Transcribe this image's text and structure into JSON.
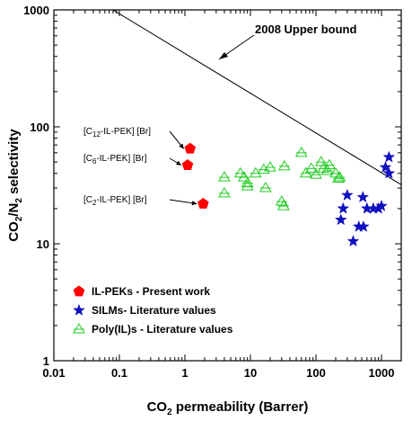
{
  "chart_data": {
    "type": "scatter",
    "xscale": "log",
    "yscale": "log",
    "xlim": [
      0.01,
      2000
    ],
    "ylim": [
      1,
      1000
    ],
    "xticks": [
      {
        "value": 0.01,
        "label": "0.01"
      },
      {
        "value": 0.1,
        "label": "0.1"
      },
      {
        "value": 1,
        "label": "1"
      },
      {
        "value": 10,
        "label": "10"
      },
      {
        "value": 100,
        "label": "100"
      },
      {
        "value": 1000,
        "label": "1000"
      }
    ],
    "yticks": [
      {
        "value": 1,
        "label": "1"
      },
      {
        "value": 10,
        "label": "10"
      },
      {
        "value": 100,
        "label": "100"
      },
      {
        "value": 1000,
        "label": "1000"
      }
    ],
    "xlabel": {
      "pre": "CO",
      "sub": "2",
      "post": " permeability (Barrer)"
    },
    "ylabel": {
      "p1": "CO",
      "s1": "2",
      "p2": "/N",
      "s2": "2",
      "p3": " selectivity"
    },
    "grid": false,
    "legend_position": "bottom-left",
    "upper_bound": {
      "label": "2008 Upper bound",
      "points": [
        [
          0.08,
          1000
        ],
        [
          2000,
          32
        ]
      ]
    },
    "series": [
      {
        "name": "IL-PEKs - Present work",
        "marker": "pentagon",
        "color": "#ff0000",
        "points": [
          [
            1.2,
            65
          ],
          [
            1.1,
            47
          ],
          [
            1.9,
            22
          ]
        ]
      },
      {
        "name": "SILMs- Literature values",
        "marker": "star",
        "color": "#1010c0",
        "points": [
          [
            1300,
            55
          ],
          [
            1150,
            45
          ],
          [
            1300,
            40
          ],
          [
            300,
            26
          ],
          [
            520,
            25
          ],
          [
            260,
            20
          ],
          [
            600,
            20
          ],
          [
            750,
            20
          ],
          [
            900,
            20
          ],
          [
            1000,
            21
          ],
          [
            240,
            16
          ],
          [
            450,
            14
          ],
          [
            530,
            14
          ],
          [
            370,
            10.5
          ]
        ]
      },
      {
        "name": "Poly(IL)s - Literature values",
        "marker": "triangle-open",
        "color": "#22cc22",
        "points": [
          [
            4,
            37
          ],
          [
            4,
            27
          ],
          [
            7,
            40
          ],
          [
            8,
            37
          ],
          [
            9,
            33
          ],
          [
            9,
            31
          ],
          [
            12,
            40
          ],
          [
            16,
            43
          ],
          [
            17,
            30
          ],
          [
            20,
            45
          ],
          [
            30,
            23
          ],
          [
            32,
            21
          ],
          [
            33,
            46
          ],
          [
            60,
            60
          ],
          [
            70,
            40
          ],
          [
            85,
            44
          ],
          [
            100,
            39
          ],
          [
            120,
            50
          ],
          [
            130,
            44
          ],
          [
            150,
            42
          ],
          [
            160,
            47
          ],
          [
            200,
            40
          ],
          [
            220,
            36
          ],
          [
            230,
            37
          ]
        ]
      }
    ],
    "annotations": [
      {
        "pre": "[C",
        "sub": "12",
        "post": "-IL-PEK] [Br]",
        "target": [
          1.2,
          65
        ]
      },
      {
        "pre": "[C",
        "sub": "6",
        "post": "-IL-PEK] [Br]",
        "target": [
          1.1,
          47
        ]
      },
      {
        "pre": "[C",
        "sub": "2",
        "post": "-IL-PEK] [Br]",
        "target": [
          1.9,
          22
        ]
      }
    ]
  }
}
